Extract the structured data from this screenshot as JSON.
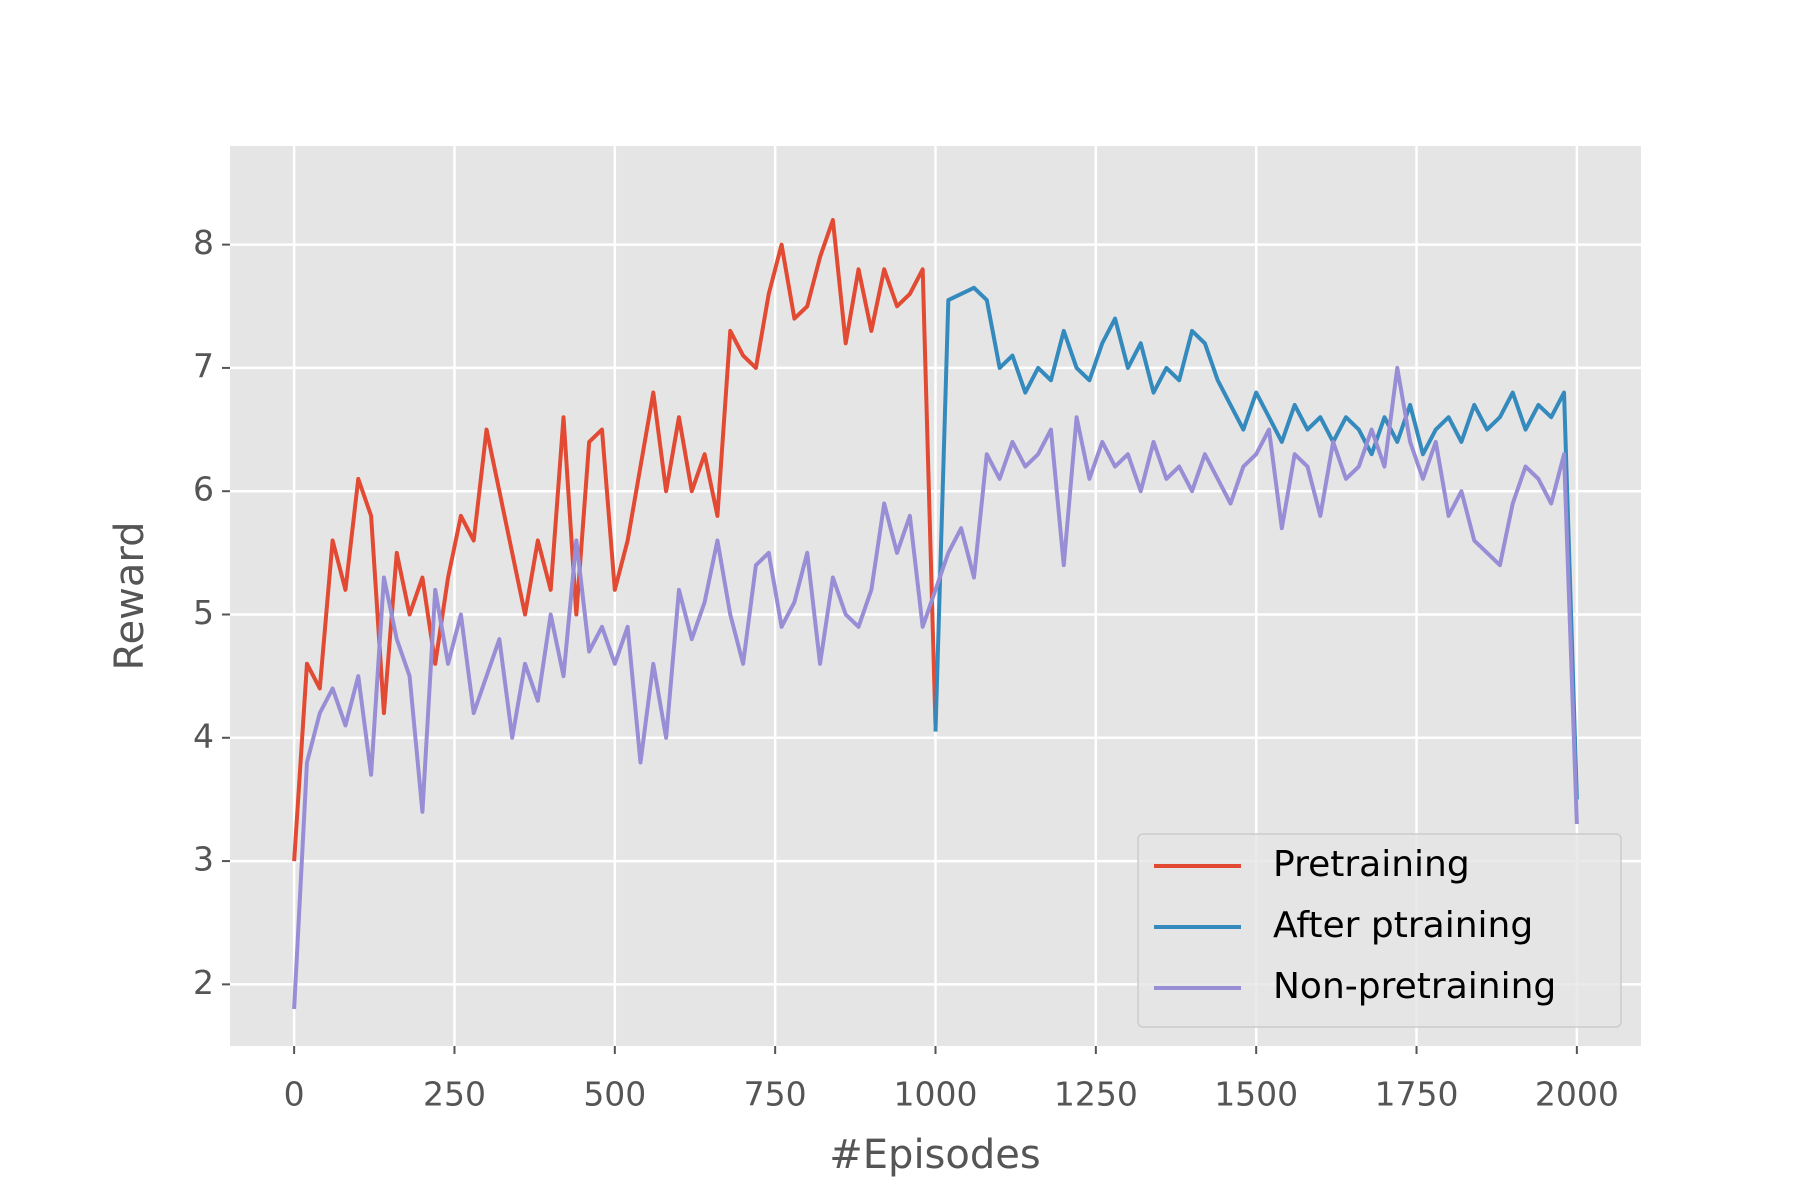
{
  "chart_data": {
    "type": "line",
    "xlabel": "#Episodes",
    "ylabel": "Reward",
    "xlim": [
      -100,
      2100
    ],
    "ylim": [
      1.5,
      8.8
    ],
    "xticks": [
      0,
      250,
      500,
      750,
      1000,
      1250,
      1500,
      1750,
      2000
    ],
    "yticks": [
      2,
      3,
      4,
      5,
      6,
      7,
      8
    ],
    "grid": true,
    "legend": "lower right",
    "series": [
      {
        "name": "Pretraining",
        "color": "#E24A33",
        "x": [
          0,
          20,
          40,
          60,
          80,
          100,
          120,
          140,
          160,
          180,
          200,
          220,
          240,
          260,
          280,
          300,
          320,
          340,
          360,
          380,
          400,
          420,
          440,
          460,
          480,
          500,
          520,
          540,
          560,
          580,
          600,
          620,
          640,
          660,
          680,
          700,
          720,
          740,
          760,
          780,
          800,
          820,
          840,
          860,
          880,
          900,
          920,
          940,
          960,
          980,
          1000
        ],
        "values": [
          3.0,
          4.6,
          4.4,
          5.6,
          5.2,
          6.1,
          5.8,
          4.2,
          5.5,
          5.0,
          5.3,
          4.6,
          5.3,
          5.8,
          5.6,
          6.5,
          6.0,
          5.5,
          5.0,
          5.6,
          5.2,
          6.6,
          5.0,
          6.4,
          6.5,
          5.2,
          5.6,
          6.2,
          6.8,
          6.0,
          6.6,
          6.0,
          6.3,
          5.8,
          7.3,
          7.1,
          7.0,
          7.6,
          8.0,
          7.4,
          7.5,
          7.9,
          8.2,
          7.2,
          7.8,
          7.3,
          7.8,
          7.5,
          7.6,
          7.8,
          4.1
        ]
      },
      {
        "name": "After ptraining",
        "color": "#348ABD",
        "x": [
          1000,
          1020,
          1040,
          1060,
          1080,
          1100,
          1120,
          1140,
          1160,
          1180,
          1200,
          1220,
          1240,
          1260,
          1280,
          1300,
          1320,
          1340,
          1360,
          1380,
          1400,
          1420,
          1440,
          1460,
          1480,
          1500,
          1520,
          1540,
          1560,
          1580,
          1600,
          1620,
          1640,
          1660,
          1680,
          1700,
          1720,
          1740,
          1760,
          1780,
          1800,
          1820,
          1840,
          1860,
          1880,
          1900,
          1920,
          1940,
          1960,
          1980,
          2000
        ],
        "values": [
          4.05,
          7.55,
          7.6,
          7.65,
          7.55,
          7.0,
          7.1,
          6.8,
          7.0,
          6.9,
          7.3,
          7.0,
          6.9,
          7.2,
          7.4,
          7.0,
          7.2,
          6.8,
          7.0,
          6.9,
          7.3,
          7.2,
          6.9,
          6.7,
          6.5,
          6.8,
          6.6,
          6.4,
          6.7,
          6.5,
          6.6,
          6.4,
          6.6,
          6.5,
          6.3,
          6.6,
          6.4,
          6.7,
          6.3,
          6.5,
          6.6,
          6.4,
          6.7,
          6.5,
          6.6,
          6.8,
          6.5,
          6.7,
          6.6,
          6.8,
          3.5
        ]
      },
      {
        "name": "Non-pretraining",
        "color": "#988ED5",
        "x": [
          0,
          20,
          40,
          60,
          80,
          100,
          120,
          140,
          160,
          180,
          200,
          220,
          240,
          260,
          280,
          300,
          320,
          340,
          360,
          380,
          400,
          420,
          440,
          460,
          480,
          500,
          520,
          540,
          560,
          580,
          600,
          620,
          640,
          660,
          680,
          700,
          720,
          740,
          760,
          780,
          800,
          820,
          840,
          860,
          880,
          900,
          920,
          940,
          960,
          980,
          1000,
          1020,
          1040,
          1060,
          1080,
          1100,
          1120,
          1140,
          1160,
          1180,
          1200,
          1220,
          1240,
          1260,
          1280,
          1300,
          1320,
          1340,
          1360,
          1380,
          1400,
          1420,
          1440,
          1460,
          1480,
          1500,
          1520,
          1540,
          1560,
          1580,
          1600,
          1620,
          1640,
          1660,
          1680,
          1700,
          1720,
          1740,
          1760,
          1780,
          1800,
          1820,
          1840,
          1860,
          1880,
          1900,
          1920,
          1940,
          1960,
          1980,
          2000
        ],
        "values": [
          1.8,
          3.8,
          4.2,
          4.4,
          4.1,
          4.5,
          3.7,
          5.3,
          4.8,
          4.5,
          3.4,
          5.2,
          4.6,
          5.0,
          4.2,
          4.5,
          4.8,
          4.0,
          4.6,
          4.3,
          5.0,
          4.5,
          5.6,
          4.7,
          4.9,
          4.6,
          4.9,
          3.8,
          4.6,
          4.0,
          5.2,
          4.8,
          5.1,
          5.6,
          5.0,
          4.6,
          5.4,
          5.5,
          4.9,
          5.1,
          5.5,
          4.6,
          5.3,
          5.0,
          4.9,
          5.2,
          5.9,
          5.5,
          5.8,
          4.9,
          5.2,
          5.5,
          5.7,
          5.3,
          6.3,
          6.1,
          6.4,
          6.2,
          6.3,
          6.5,
          5.4,
          6.6,
          6.1,
          6.4,
          6.2,
          6.3,
          6.0,
          6.4,
          6.1,
          6.2,
          6.0,
          6.3,
          6.1,
          5.9,
          6.2,
          6.3,
          6.5,
          5.7,
          6.3,
          6.2,
          5.8,
          6.4,
          6.1,
          6.2,
          6.5,
          6.2,
          7.0,
          6.4,
          6.1,
          6.4,
          5.8,
          6.0,
          5.6,
          5.5,
          5.4,
          5.9,
          6.2,
          6.1,
          5.9,
          6.3,
          3.3
        ]
      }
    ]
  }
}
